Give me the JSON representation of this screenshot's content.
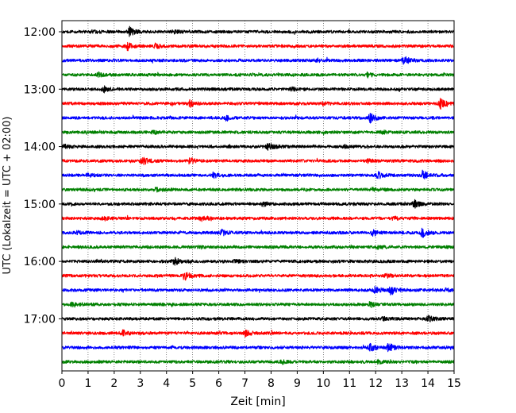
{
  "chart_data": {
    "type": "line",
    "subtype": "helicorder",
    "title": "",
    "xlabel": "Zeit  [min]",
    "ylabel": "UTC (Lokalzeit = UTC + 02:00)",
    "xlim": [
      0,
      15
    ],
    "x_ticks": [
      0,
      1,
      2,
      3,
      4,
      5,
      6,
      7,
      8,
      9,
      10,
      11,
      12,
      13,
      14,
      15
    ],
    "x_tick_labels": [
      "0",
      "1",
      "2",
      "3",
      "4",
      "5",
      "6",
      "7",
      "8",
      "9",
      "10",
      "11",
      "12",
      "13",
      "14",
      "15"
    ],
    "y_ticks": [
      "12:00",
      "13:00",
      "14:00",
      "15:00",
      "16:00",
      "17:00"
    ],
    "grid": "vertical dotted lines at each minute",
    "color_cycle": [
      "#000000",
      "#ff0000",
      "#0000ff",
      "#008000"
    ],
    "series": [
      {
        "start": "12:00",
        "color": "#000000",
        "events": [
          {
            "t": 2.6,
            "amp": 10
          },
          {
            "t": 4.3,
            "amp": 4
          },
          {
            "t": 1.2,
            "amp": 3
          }
        ]
      },
      {
        "start": "12:15",
        "color": "#ff0000",
        "events": [
          {
            "t": 2.5,
            "amp": 10
          },
          {
            "t": 3.6,
            "amp": 5
          }
        ]
      },
      {
        "start": "12:30",
        "color": "#0000ff",
        "events": [
          {
            "t": 13.1,
            "amp": 10
          },
          {
            "t": 9.7,
            "amp": 3
          }
        ]
      },
      {
        "start": "12:45",
        "color": "#008000",
        "events": [
          {
            "t": 11.7,
            "amp": 5
          },
          {
            "t": 1.4,
            "amp": 4
          }
        ]
      },
      {
        "start": "13:00",
        "color": "#000000",
        "events": [
          {
            "t": 1.6,
            "amp": 7
          },
          {
            "t": 8.8,
            "amp": 3
          }
        ]
      },
      {
        "start": "13:15",
        "color": "#ff0000",
        "events": [
          {
            "t": 14.5,
            "amp": 11
          },
          {
            "t": 4.9,
            "amp": 7
          },
          {
            "t": 10.0,
            "amp": 3
          }
        ]
      },
      {
        "start": "13:30",
        "color": "#0000ff",
        "events": [
          {
            "t": 11.8,
            "amp": 10
          },
          {
            "t": 6.3,
            "amp": 5
          }
        ]
      },
      {
        "start": "13:45",
        "color": "#008000",
        "events": [
          {
            "t": 3.5,
            "amp": 3
          },
          {
            "t": 12.3,
            "amp": 3
          }
        ]
      },
      {
        "start": "14:00",
        "color": "#000000",
        "events": [
          {
            "t": 7.9,
            "amp": 8
          },
          {
            "t": 0.1,
            "amp": 4
          },
          {
            "t": 10.8,
            "amp": 3
          }
        ]
      },
      {
        "start": "14:15",
        "color": "#ff0000",
        "events": [
          {
            "t": 3.1,
            "amp": 9
          },
          {
            "t": 4.9,
            "amp": 7
          },
          {
            "t": 11.7,
            "amp": 4
          }
        ]
      },
      {
        "start": "14:30",
        "color": "#0000ff",
        "events": [
          {
            "t": 13.8,
            "amp": 10
          },
          {
            "t": 5.8,
            "amp": 8
          },
          {
            "t": 12.1,
            "amp": 7
          },
          {
            "t": 1.0,
            "amp": 3
          }
        ]
      },
      {
        "start": "14:45",
        "color": "#008000",
        "events": [
          {
            "t": 3.6,
            "amp": 4
          },
          {
            "t": 11.9,
            "amp": 3
          }
        ]
      },
      {
        "start": "15:00",
        "color": "#000000",
        "events": [
          {
            "t": 13.5,
            "amp": 9
          },
          {
            "t": 7.7,
            "amp": 5
          }
        ]
      },
      {
        "start": "15:15",
        "color": "#ff0000",
        "events": [
          {
            "t": 5.3,
            "amp": 7
          },
          {
            "t": 1.6,
            "amp": 4
          },
          {
            "t": 12.7,
            "amp": 4
          }
        ]
      },
      {
        "start": "15:30",
        "color": "#0000ff",
        "events": [
          {
            "t": 13.8,
            "amp": 10
          },
          {
            "t": 6.1,
            "amp": 7
          },
          {
            "t": 11.9,
            "amp": 7
          },
          {
            "t": 0.6,
            "amp": 3
          }
        ]
      },
      {
        "start": "15:45",
        "color": "#008000",
        "events": [
          {
            "t": 12.1,
            "amp": 4
          },
          {
            "t": 5.3,
            "amp": 3
          }
        ]
      },
      {
        "start": "16:00",
        "color": "#000000",
        "events": [
          {
            "t": 4.3,
            "amp": 8
          },
          {
            "t": 6.6,
            "amp": 3
          }
        ]
      },
      {
        "start": "16:15",
        "color": "#ff0000",
        "events": [
          {
            "t": 4.7,
            "amp": 9
          },
          {
            "t": 12.4,
            "amp": 4
          }
        ]
      },
      {
        "start": "16:30",
        "color": "#0000ff",
        "events": [
          {
            "t": 12.6,
            "amp": 10
          },
          {
            "t": 12.0,
            "amp": 8
          },
          {
            "t": 14.7,
            "amp": 3
          }
        ]
      },
      {
        "start": "16:45",
        "color": "#008000",
        "events": [
          {
            "t": 11.8,
            "amp": 5
          },
          {
            "t": 0.4,
            "amp": 4
          }
        ]
      },
      {
        "start": "17:00",
        "color": "#000000",
        "events": [
          {
            "t": 14.0,
            "amp": 8
          },
          {
            "t": 12.3,
            "amp": 3
          }
        ]
      },
      {
        "start": "17:15",
        "color": "#ff0000",
        "events": [
          {
            "t": 2.3,
            "amp": 7
          },
          {
            "t": 7.0,
            "amp": 7
          }
        ]
      },
      {
        "start": "17:30",
        "color": "#0000ff",
        "events": [
          {
            "t": 12.5,
            "amp": 10
          },
          {
            "t": 11.8,
            "amp": 8
          }
        ]
      },
      {
        "start": "17:45",
        "color": "#008000",
        "events": [
          {
            "t": 8.4,
            "amp": 4
          },
          {
            "t": 12.1,
            "amp": 3
          }
        ]
      }
    ]
  }
}
